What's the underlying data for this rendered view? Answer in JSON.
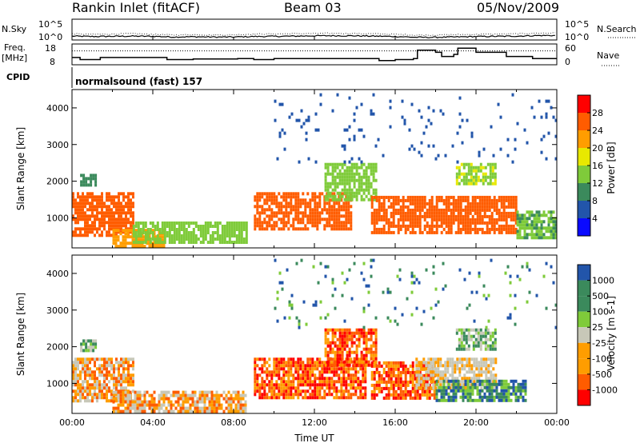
{
  "header": {
    "title": "Rankin Inlet (fitACF)",
    "beam": "Beam 03",
    "date": "05/Nov/2009"
  },
  "labels": {
    "nsky": "N.Sky",
    "nsearch": "N.Search",
    "freq": "Freq.",
    "mhz": "[MHz]",
    "nave": "Nave",
    "cpid": "CPID",
    "cpid_value": "normalsound (fast) 157",
    "noise_top": "10^5",
    "noise_bottom": "10^0",
    "freq_ticks": [
      "18",
      "8"
    ],
    "nave_ticks": [
      "60",
      "0"
    ]
  },
  "colors": {
    "power": [
      "#0a0aff",
      "#2255aa",
      "#3b8a5c",
      "#7fcb3a",
      "#e8e800",
      "#ff9d00",
      "#ff5c00",
      "#ff0000"
    ],
    "velocity": [
      "#ff0000",
      "#ff5c00",
      "#ff9d00",
      "#c8c8b8",
      "#c8c8b8",
      "#7fcb3a",
      "#3b8a5c",
      "#2255aa"
    ]
  },
  "chart_data": [
    {
      "type": "line",
      "name": "noise",
      "series": [
        {
          "name": "N.Sky",
          "x": [
            0,
            1,
            2,
            3,
            4,
            5,
            6,
            7,
            8,
            9,
            10,
            11,
            12,
            13,
            14,
            15,
            16,
            17,
            18,
            19,
            20,
            21,
            22,
            23,
            24
          ],
          "y": [
            10,
            8,
            9,
            10,
            9,
            6,
            7,
            6,
            6,
            8,
            9,
            10,
            12,
            13,
            12,
            10,
            8,
            5,
            5,
            6,
            8,
            9,
            10,
            14,
            15
          ]
        },
        {
          "name": "N.Search",
          "x": [
            0,
            1,
            2,
            3,
            4,
            5,
            6,
            7,
            8,
            9,
            10,
            11,
            12,
            13,
            14,
            15,
            16,
            17,
            18,
            19,
            20,
            21,
            22,
            23,
            24
          ],
          "y": [
            40,
            30,
            35,
            45,
            30,
            20,
            25,
            20,
            22,
            35,
            40,
            45,
            50,
            55,
            50,
            40,
            30,
            18,
            20,
            25,
            30,
            35,
            40,
            60,
            70
          ]
        }
      ],
      "xlim": [
        0,
        24
      ],
      "ylabel_top": "10^5",
      "ylabel_bottom": "10^0"
    },
    {
      "type": "line",
      "name": "frequency",
      "series": [
        {
          "name": "Freq.",
          "x": [
            0,
            0.4,
            1.4,
            4.7,
            6,
            8.2,
            9,
            10,
            11.5,
            13,
            14.5,
            15.2,
            16,
            16.9,
            17.1,
            18,
            18.3,
            18.9,
            19.1,
            20,
            21.5,
            22.8,
            24
          ],
          "y": [
            11.5,
            10.5,
            11.5,
            10.5,
            10.8,
            11,
            10.5,
            11,
            11,
            11,
            11,
            10,
            10.5,
            11,
            15,
            14,
            12,
            13,
            16,
            14,
            12,
            11,
            11
          ]
        },
        {
          "name": "Nave",
          "x": [
            0,
            24
          ],
          "y": [
            40,
            40
          ]
        }
      ],
      "xlim": [
        0,
        24
      ],
      "freq_ylim": [
        8,
        18
      ],
      "nave_ylim": [
        0,
        60
      ]
    },
    {
      "type": "heatmap",
      "name": "power",
      "xlabel": "",
      "ylabel": "Slant Range [km]",
      "xlim": [
        0,
        24
      ],
      "ylim": [
        180,
        4500
      ],
      "yticks": [
        1000,
        2000,
        3000,
        4000
      ],
      "colorbar": {
        "label": "Power [dB]",
        "ticks": [
          "4",
          "8",
          "12",
          "16",
          "20",
          "24",
          "28"
        ],
        "range": [
          0,
          32
        ]
      },
      "regions": [
        {
          "t0": 0.0,
          "t1": 3.0,
          "r0": 500,
          "r1": 1700,
          "level": 26
        },
        {
          "t0": 0.4,
          "t1": 1.2,
          "r0": 1900,
          "r1": 2200,
          "level": 9
        },
        {
          "t0": 2.0,
          "t1": 4.6,
          "r0": 200,
          "r1": 700,
          "level": 22
        },
        {
          "t0": 3.0,
          "t1": 8.6,
          "r0": 300,
          "r1": 900,
          "level": 14
        },
        {
          "t0": 9.0,
          "t1": 13.8,
          "r0": 700,
          "r1": 1700,
          "level": 25
        },
        {
          "t0": 12.5,
          "t1": 15.0,
          "r0": 1500,
          "r1": 2500,
          "level": 13
        },
        {
          "t0": 14.8,
          "t1": 22.0,
          "r0": 600,
          "r1": 1600,
          "level": 26
        },
        {
          "t0": 19.0,
          "t1": 21.0,
          "r0": 1900,
          "r1": 2500,
          "level": 15
        },
        {
          "t0": 22.0,
          "t1": 24.0,
          "r0": 500,
          "r1": 1200,
          "level": 12
        },
        {
          "t0": 10.0,
          "t1": 24.0,
          "r0": 2500,
          "r1": 4400,
          "level": 6
        }
      ]
    },
    {
      "type": "heatmap",
      "name": "velocity",
      "xlabel": "Time UT",
      "ylabel": "Slant Range [km]",
      "xlim": [
        0,
        24
      ],
      "ylim": [
        180,
        4500
      ],
      "yticks": [
        1000,
        2000,
        3000,
        4000
      ],
      "xticks": [
        "00:00",
        "04:00",
        "08:00",
        "12:00",
        "16:00",
        "20:00",
        "00:00"
      ],
      "colorbar": {
        "label": "Velocity [m s-1]",
        "ticks": [
          "1000",
          "500",
          "100",
          "25",
          "-25",
          "-100",
          "-500",
          "-1000"
        ]
      },
      "regions": [
        {
          "t0": 0.0,
          "t1": 3.0,
          "r0": 500,
          "r1": 1700,
          "level": 2
        },
        {
          "t0": 0.4,
          "t1": 1.2,
          "r0": 1900,
          "r1": 2200,
          "level": 5
        },
        {
          "t0": 2.0,
          "t1": 8.6,
          "r0": 200,
          "r1": 800,
          "level": 2
        },
        {
          "t0": 9.0,
          "t1": 14.5,
          "r0": 600,
          "r1": 1700,
          "level": 1
        },
        {
          "t0": 12.5,
          "t1": 15.0,
          "r0": 1500,
          "r1": 2500,
          "level": 1
        },
        {
          "t0": 14.8,
          "t1": 18.0,
          "r0": 600,
          "r1": 1600,
          "level": 1
        },
        {
          "t0": 17.0,
          "t1": 21.0,
          "r0": 900,
          "r1": 1700,
          "level": 3
        },
        {
          "t0": 18.0,
          "t1": 22.5,
          "r0": 500,
          "r1": 1100,
          "level": 6
        },
        {
          "t0": 19.0,
          "t1": 21.0,
          "r0": 1900,
          "r1": 2500,
          "level": 5
        },
        {
          "t0": 10.0,
          "t1": 24.0,
          "r0": 2500,
          "r1": 4400,
          "level": 6
        }
      ]
    }
  ]
}
